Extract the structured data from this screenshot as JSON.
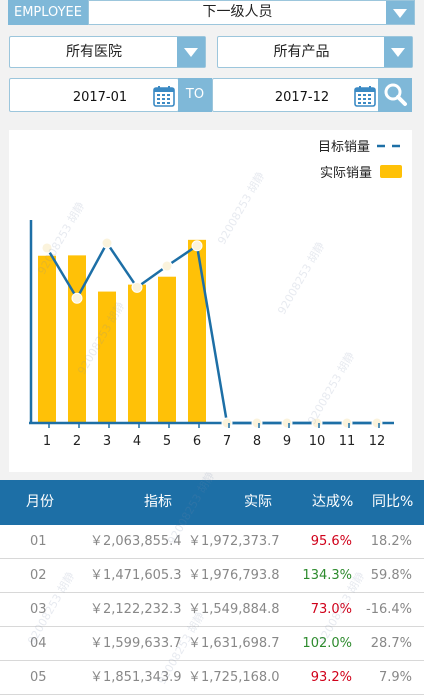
{
  "filters": {
    "employee_label": "EMPLOYEE",
    "employee_value": "下一级人员",
    "hospital_value": "所有医院",
    "product_value": "所有产品",
    "date_from": "2017-01",
    "to_label": "TO",
    "date_to": "2017-12"
  },
  "colors": {
    "accent": "#7fb8d8",
    "header": "#1d6fa6",
    "bar": "#ffc107",
    "line": "#1d6fa6",
    "green": "#2e8b2e",
    "red": "#d0021b"
  },
  "watermark": "92008253 胡静",
  "chart_data": {
    "type": "bar",
    "categories": [
      "1",
      "2",
      "3",
      "4",
      "5",
      "6",
      "7",
      "8",
      "9",
      "10",
      "11",
      "12"
    ],
    "series": [
      {
        "name": "实际销量",
        "kind": "bar",
        "values": [
          1972373.7,
          1976793.8,
          1549884.8,
          1631698.7,
          1725168.0,
          2160000,
          0,
          0,
          0,
          0,
          0,
          0
        ]
      },
      {
        "name": "目标销量",
        "kind": "line",
        "values": [
          2063855.4,
          1471605.3,
          2122232.3,
          1599633.7,
          1851343.9,
          2090000,
          0,
          0,
          0,
          0,
          0,
          0
        ]
      }
    ],
    "ylim": [
      0,
      2500000
    ],
    "legend": [
      {
        "label": "目标销量",
        "kind": "dash"
      },
      {
        "label": "实际销量",
        "kind": "box"
      }
    ]
  },
  "table": {
    "headers": [
      "月份",
      "指标",
      "实际",
      "达成%",
      "同比%"
    ],
    "rows": [
      {
        "month": "01",
        "target": "￥2,063,855.4",
        "actual": "￥1,972,373.7",
        "rate": "95.6%",
        "rate_color": "red",
        "yoy": "18.2%"
      },
      {
        "month": "02",
        "target": "￥1,471,605.3",
        "actual": "￥1,976,793.8",
        "rate": "134.3%",
        "rate_color": "green",
        "yoy": "59.8%"
      },
      {
        "month": "03",
        "target": "￥2,122,232.3",
        "actual": "￥1,549,884.8",
        "rate": "73.0%",
        "rate_color": "red",
        "yoy": "-16.4%"
      },
      {
        "month": "04",
        "target": "￥1,599,633.7",
        "actual": "￥1,631,698.7",
        "rate": "102.0%",
        "rate_color": "green",
        "yoy": "28.7%"
      },
      {
        "month": "05",
        "target": "￥1,851,343.9",
        "actual": "￥1,725,168.0",
        "rate": "93.2%",
        "rate_color": "red",
        "yoy": "7.9%"
      }
    ]
  }
}
